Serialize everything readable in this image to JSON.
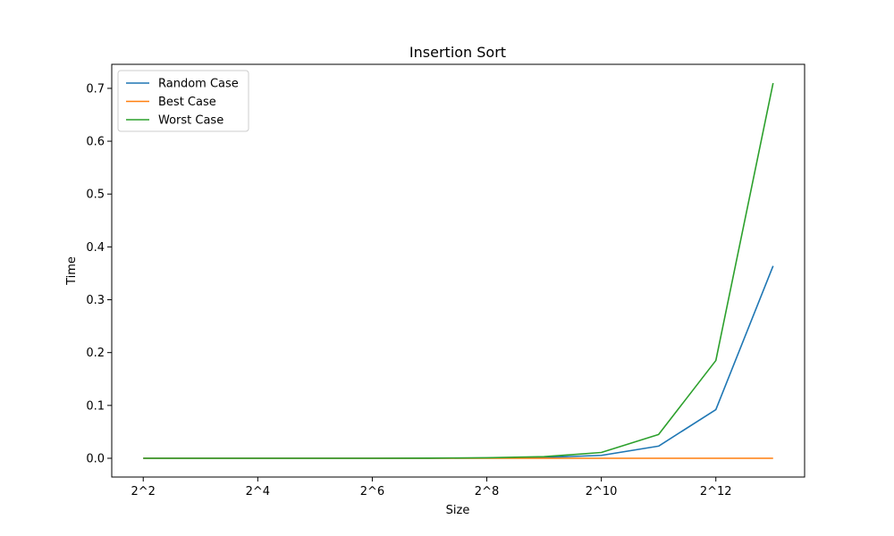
{
  "chart_data": {
    "type": "line",
    "title": "Insertion Sort",
    "xlabel": "Size",
    "ylabel": "Time",
    "x": [
      2,
      3,
      4,
      5,
      6,
      7,
      8,
      9,
      10,
      11,
      12,
      13
    ],
    "x_tick_values": [
      2,
      4,
      6,
      8,
      10,
      12
    ],
    "x_tick_labels": [
      "2^2",
      "2^4",
      "2^6",
      "2^8",
      "2^10",
      "2^12"
    ],
    "xlim": [
      1.45,
      13.55
    ],
    "ylim": [
      -0.0355,
      0.7455
    ],
    "y_tick_values": [
      0.0,
      0.1,
      0.2,
      0.3,
      0.4,
      0.5,
      0.6,
      0.7
    ],
    "y_tick_labels": [
      "0.0",
      "0.1",
      "0.2",
      "0.3",
      "0.4",
      "0.5",
      "0.6",
      "0.7"
    ],
    "grid": false,
    "legend_position": "top-left",
    "series": [
      {
        "name": "Random Case",
        "color": "#1f77b4",
        "values": [
          0.0,
          0.0,
          0.0,
          0.0,
          0.0,
          0.0,
          0.0005,
          0.0015,
          0.0055,
          0.023,
          0.092,
          0.364
        ]
      },
      {
        "name": "Best Case",
        "color": "#ff7f0e",
        "values": [
          0.0,
          0.0,
          0.0,
          0.0,
          0.0,
          0.0,
          0.0,
          0.0,
          0.0,
          0.0,
          0.0,
          0.0
        ]
      },
      {
        "name": "Worst Case",
        "color": "#2ca02c",
        "values": [
          0.0,
          0.0,
          0.0,
          0.0,
          0.0,
          0.0003,
          0.001,
          0.003,
          0.011,
          0.045,
          0.185,
          0.71
        ]
      }
    ]
  }
}
